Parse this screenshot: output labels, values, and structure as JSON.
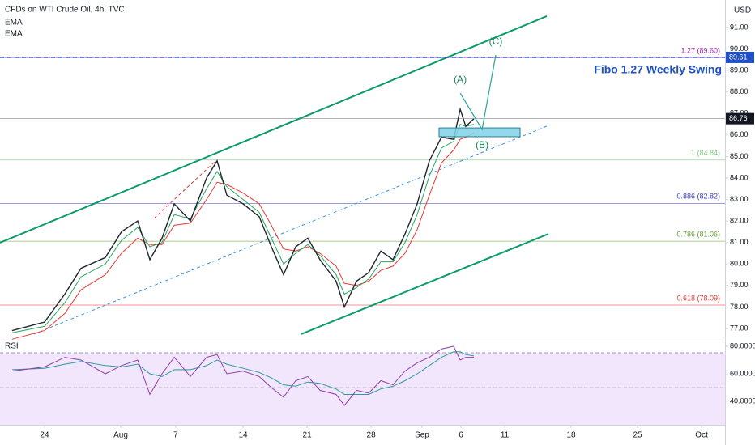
{
  "chart_data": [
    {
      "type": "line",
      "title": "CFDs on WTI Crude Oil, 4h, TVC",
      "currency": "USD",
      "color": "#1e2430",
      "x": [
        -2.53,
        0,
        1.58,
        2.85,
        4.75,
        6.01,
        7.28,
        8.23,
        9.18,
        10.13,
        11.39,
        12.66,
        13.48,
        14.24,
        15.51,
        16.77,
        17.72,
        18.67,
        19.62,
        20.57,
        21.52,
        22.78,
        23.42,
        24.37,
        25.32,
        26.27,
        27.22,
        28.16,
        29.11,
        30.06,
        31.01,
        31.96,
        32.47,
        32.91,
        33.54
      ],
      "values": [
        76.9,
        77.3,
        78.6,
        79.8,
        80.3,
        81.5,
        82.0,
        80.2,
        81.2,
        82.8,
        82.0,
        84.0,
        84.8,
        83.2,
        82.8,
        82.2,
        80.8,
        79.5,
        80.8,
        81.2,
        80.2,
        79.2,
        78.0,
        79.2,
        79.6,
        80.6,
        80.2,
        81.4,
        82.8,
        84.8,
        85.9,
        85.8,
        87.2,
        86.4,
        86.76
      ],
      "series": [
        {
          "name": "EMA",
          "color": "#26a65b",
          "values": [
            76.8,
            77.1,
            78.2,
            79.4,
            80.0,
            81.1,
            81.7,
            80.8,
            81.0,
            82.3,
            82.1,
            83.5,
            84.3,
            83.6,
            83.0,
            82.4,
            81.2,
            80.0,
            80.5,
            80.9,
            80.4,
            79.5,
            78.6,
            78.9,
            79.3,
            80.1,
            80.1,
            81.0,
            82.3,
            84.1,
            85.4,
            85.7,
            86.5,
            86.4,
            86.5
          ]
        },
        {
          "name": "EMA",
          "color": "#e53935",
          "values": [
            76.5,
            76.9,
            77.7,
            78.8,
            79.5,
            80.5,
            81.2,
            80.9,
            80.9,
            81.8,
            81.9,
            83.0,
            83.8,
            83.7,
            83.3,
            82.8,
            81.8,
            80.7,
            80.6,
            80.8,
            80.5,
            79.9,
            79.1,
            79.0,
            79.2,
            79.7,
            79.9,
            80.5,
            81.6,
            83.2,
            84.7,
            85.3,
            85.8,
            85.9,
            86.1
          ]
        }
      ],
      "xlim": [
        -3.48,
        53.16
      ],
      "ylim": [
        76.66,
        92.28
      ],
      "yticks": [
        {
          "value": 77,
          "label": "77.00"
        },
        {
          "value": 78,
          "label": "78.00"
        },
        {
          "value": 79,
          "label": "79.00"
        },
        {
          "value": 80,
          "label": "80.00"
        },
        {
          "value": 81,
          "label": "81.00"
        },
        {
          "value": 82,
          "label": "82.00"
        },
        {
          "value": 83,
          "label": "83.00"
        },
        {
          "value": 84,
          "label": "84.00"
        },
        {
          "value": 85,
          "label": "85.00"
        },
        {
          "value": 86,
          "label": "86.00"
        },
        {
          "value": 87,
          "label": "87.00"
        },
        {
          "value": 88,
          "label": "88.00"
        },
        {
          "value": 89,
          "label": "89.00"
        },
        {
          "value": 90,
          "label": "90.00"
        },
        {
          "value": 91,
          "label": "91.00"
        }
      ],
      "levels": [
        {
          "value": 89.6,
          "label": "1.27 (89.60)",
          "color": "#9c27b0"
        },
        {
          "value": 84.84,
          "label": "1 (84.84)",
          "color": "#81c784"
        },
        {
          "value": 82.82,
          "label": "0.886 (82.82)",
          "color": "#3f3fbf"
        },
        {
          "value": 81.06,
          "label": "0.786 (81.06)",
          "color": "#689f38"
        },
        {
          "value": 78.09,
          "label": "0.618 (78.09)",
          "color": "#e53935"
        }
      ],
      "target": {
        "value": 89.61,
        "label": "89.61",
        "color": "#1e50c8",
        "annotation": "Fibo 1.27 Weekly Swing"
      },
      "last": {
        "value": 86.76,
        "label": "86.76"
      },
      "trendlines": [
        {
          "color": "#0b9a6a",
          "x": [
            -3.48,
            39.24
          ],
          "y": [
            80.99,
            91.53
          ]
        },
        {
          "color": "#0b9a6a",
          "x": [
            20.06,
            39.37
          ],
          "y": [
            76.74,
            81.4
          ]
        },
        {
          "color": "#3d8fe0",
          "dashed": true,
          "x": [
            -0.82,
            39.24
          ],
          "y": [
            76.74,
            86.41
          ]
        },
        {
          "color": "#e53935",
          "dashed": true,
          "x": [
            8.54,
            13.29
          ],
          "y": [
            82.12,
            84.75
          ]
        }
      ],
      "zone": {
        "color": "#7fd3e8",
        "x": [
          30.82,
          37.15
        ],
        "y": [
          85.92,
          86.33
        ]
      },
      "waves": [
        {
          "label": "(A)",
          "x": 32.47,
          "y": 87.95
        },
        {
          "label": "(B)",
          "x": 34.18,
          "y": 86.26
        },
        {
          "label": "(C)",
          "x": 35.25,
          "y": 89.72
        }
      ]
    },
    {
      "type": "line",
      "title": "RSI",
      "color": "#8e3fa8",
      "x": [
        -2.53,
        0,
        1.58,
        2.85,
        4.75,
        6.01,
        7.28,
        8.23,
        9.18,
        10.13,
        11.39,
        12.66,
        13.48,
        14.24,
        15.51,
        16.77,
        17.72,
        18.67,
        19.62,
        20.57,
        21.52,
        22.78,
        23.42,
        24.37,
        25.32,
        26.27,
        27.22,
        28.16,
        29.11,
        30.06,
        31.01,
        31.96,
        32.47,
        32.91,
        33.54
      ],
      "values": [
        62,
        65,
        72,
        70,
        60,
        66,
        70,
        45,
        60,
        72,
        58,
        72,
        74,
        60,
        62,
        58,
        50,
        43,
        55,
        58,
        48,
        45,
        37,
        48,
        46,
        55,
        52,
        62,
        68,
        72,
        78,
        80,
        70,
        72,
        72
      ],
      "series": [
        {
          "color": "#2e9aa0",
          "values": [
            63,
            64,
            67,
            69,
            66,
            65,
            67,
            60,
            58,
            63,
            63,
            66,
            70,
            67,
            64,
            61,
            57,
            52,
            51,
            54,
            53,
            49,
            45,
            45,
            45,
            49,
            51,
            55,
            60,
            66,
            72,
            76,
            76,
            74,
            73
          ]
        }
      ],
      "xlim": [
        -3.48,
        53.16
      ],
      "ylim": [
        22.9,
        85.9
      ],
      "yticks": [
        {
          "value": 80,
          "label": "80.0000"
        },
        {
          "value": 60,
          "label": "60.0000"
        },
        {
          "value": 40,
          "label": "40.0000"
        }
      ],
      "xticks": [
        {
          "value": 0,
          "label": "24"
        },
        {
          "value": 5.95,
          "label": "Aug"
        },
        {
          "value": 10.25,
          "label": "7"
        },
        {
          "value": 15.51,
          "label": "14"
        },
        {
          "value": 20.51,
          "label": "21"
        },
        {
          "value": 25.51,
          "label": "28"
        },
        {
          "value": 29.49,
          "label": "Sep"
        },
        {
          "value": 32.53,
          "label": "6"
        },
        {
          "value": 35.95,
          "label": "11"
        },
        {
          "value": 41.14,
          "label": "18"
        },
        {
          "value": 46.33,
          "label": "25"
        },
        {
          "value": 51.33,
          "label": "Oct"
        }
      ]
    }
  ]
}
